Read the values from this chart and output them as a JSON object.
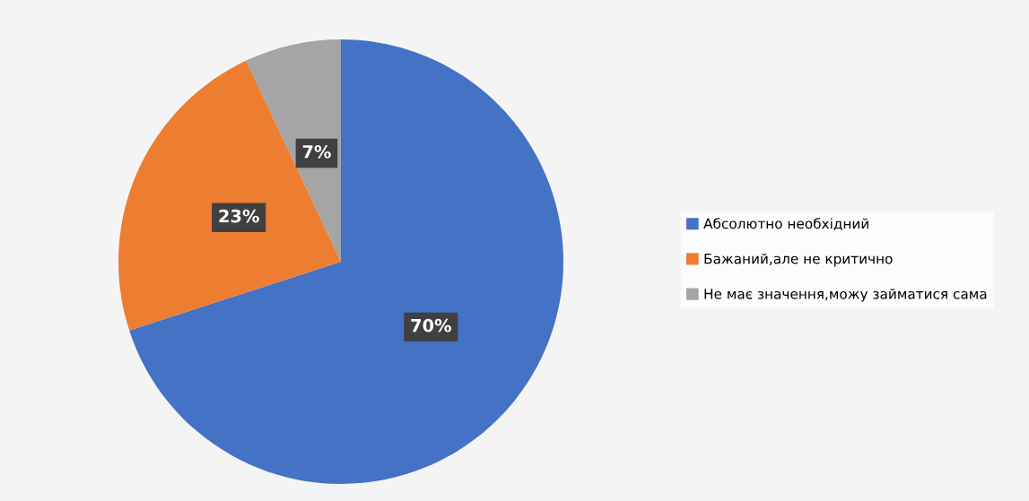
{
  "chart_data": {
    "type": "pie",
    "categories": [
      "Абсолютно необхідний",
      "Бажаний,але не критично",
      "Не має значення,можу займатися сама"
    ],
    "values": [
      70,
      23,
      7
    ],
    "colors": [
      "#4472c4",
      "#ed7d31",
      "#a5a5a5"
    ],
    "value_labels": [
      "70%",
      "23%",
      "7%"
    ],
    "legend": "right"
  }
}
